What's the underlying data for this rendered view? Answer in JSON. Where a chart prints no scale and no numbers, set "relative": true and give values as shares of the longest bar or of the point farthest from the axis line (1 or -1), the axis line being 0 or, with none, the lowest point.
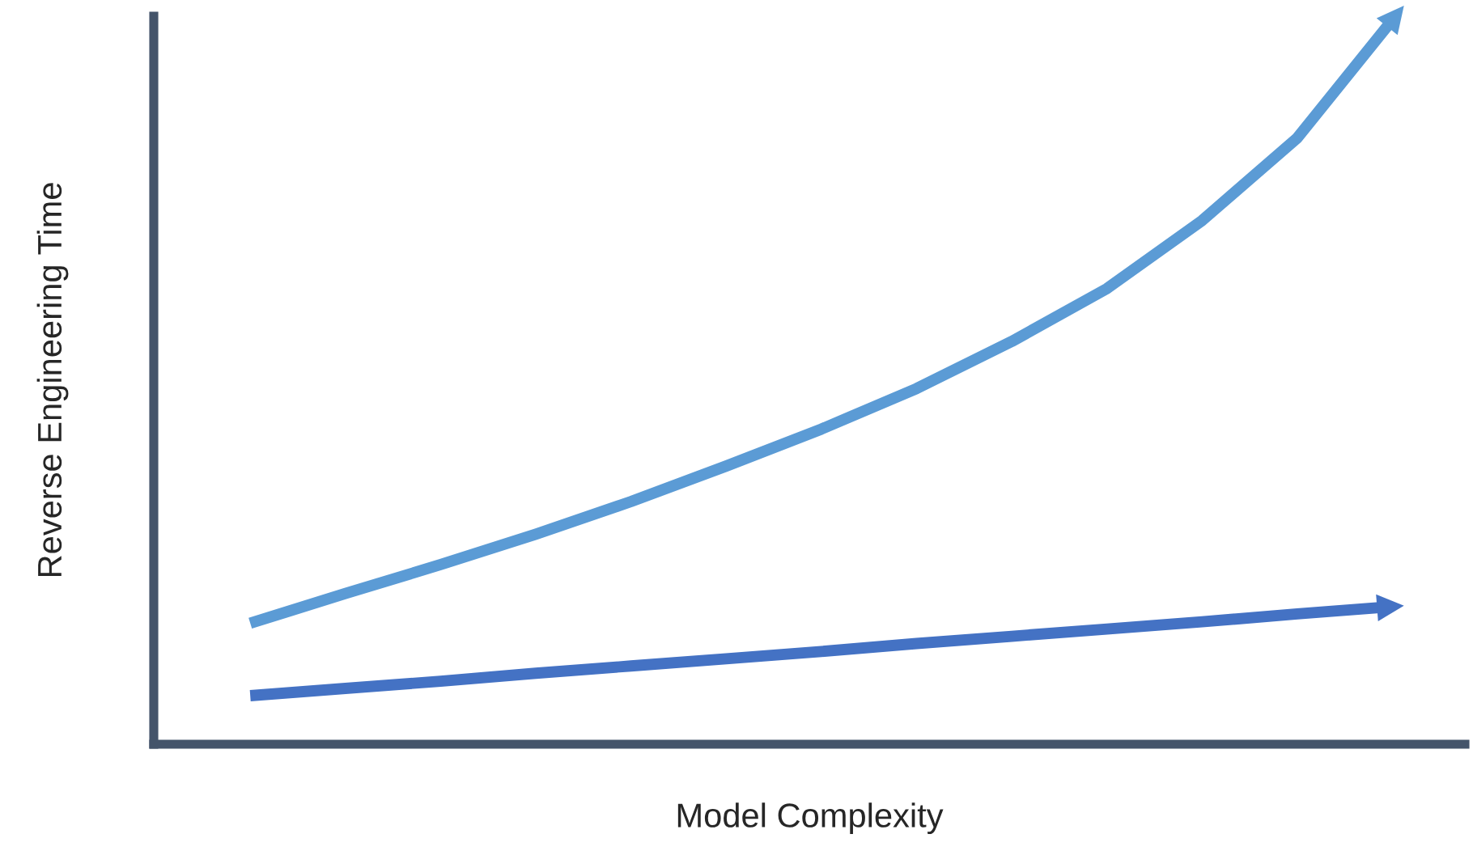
{
  "chart_data": {
    "type": "line",
    "relative": true,
    "xlabel": "Model Complexity",
    "ylabel": "Reverse Engineering Time",
    "categories": [
      null,
      null,
      null,
      null,
      null,
      null,
      null,
      null,
      null,
      null,
      null,
      null,
      null
    ],
    "series": [
      {
        "color": "#5b9bd5",
        "values": [
          0.167,
          0.208,
          0.248,
          0.29,
          0.335,
          0.384,
          0.435,
          0.491,
          0.556,
          0.629,
          0.723,
          0.837,
          1.0
        ]
      },
      {
        "color": "#4472c4",
        "values": [
          0.067,
          0.077,
          0.087,
          0.098,
          0.108,
          0.118,
          0.128,
          0.139,
          0.149,
          0.159,
          0.169,
          0.18,
          0.19
        ]
      }
    ],
    "marker": "none",
    "line_style": "solid",
    "tick_labels": false
  }
}
